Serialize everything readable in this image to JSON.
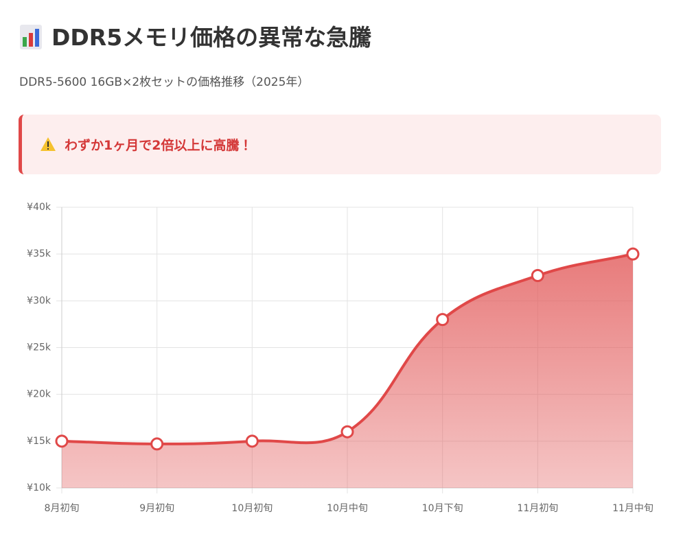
{
  "title": "DDR5メモリ価格の異常な急騰",
  "subtitle": "DDR5-5600 16GB×2枚セットの価格推移（2025年）",
  "alert": "わずか1ヶ月で2倍以上に高騰！",
  "chart_data": {
    "type": "line",
    "categories": [
      "8月初旬",
      "9月初旬",
      "10月初旬",
      "10月中旬",
      "10月下旬",
      "11月初旬",
      "11月中旬"
    ],
    "values": [
      15000,
      14700,
      15000,
      16000,
      28000,
      32700,
      35000
    ],
    "color": "#e04848",
    "ylim": [
      10000,
      40000
    ],
    "yticks": [
      {
        "value": 10000,
        "label": "¥10k"
      },
      {
        "value": 15000,
        "label": "¥15k"
      },
      {
        "value": 20000,
        "label": "¥20k"
      },
      {
        "value": 25000,
        "label": "¥25k"
      },
      {
        "value": 30000,
        "label": "¥30k"
      },
      {
        "value": 35000,
        "label": "¥35k"
      },
      {
        "value": 40000,
        "label": "¥40k"
      }
    ],
    "grid": true
  }
}
